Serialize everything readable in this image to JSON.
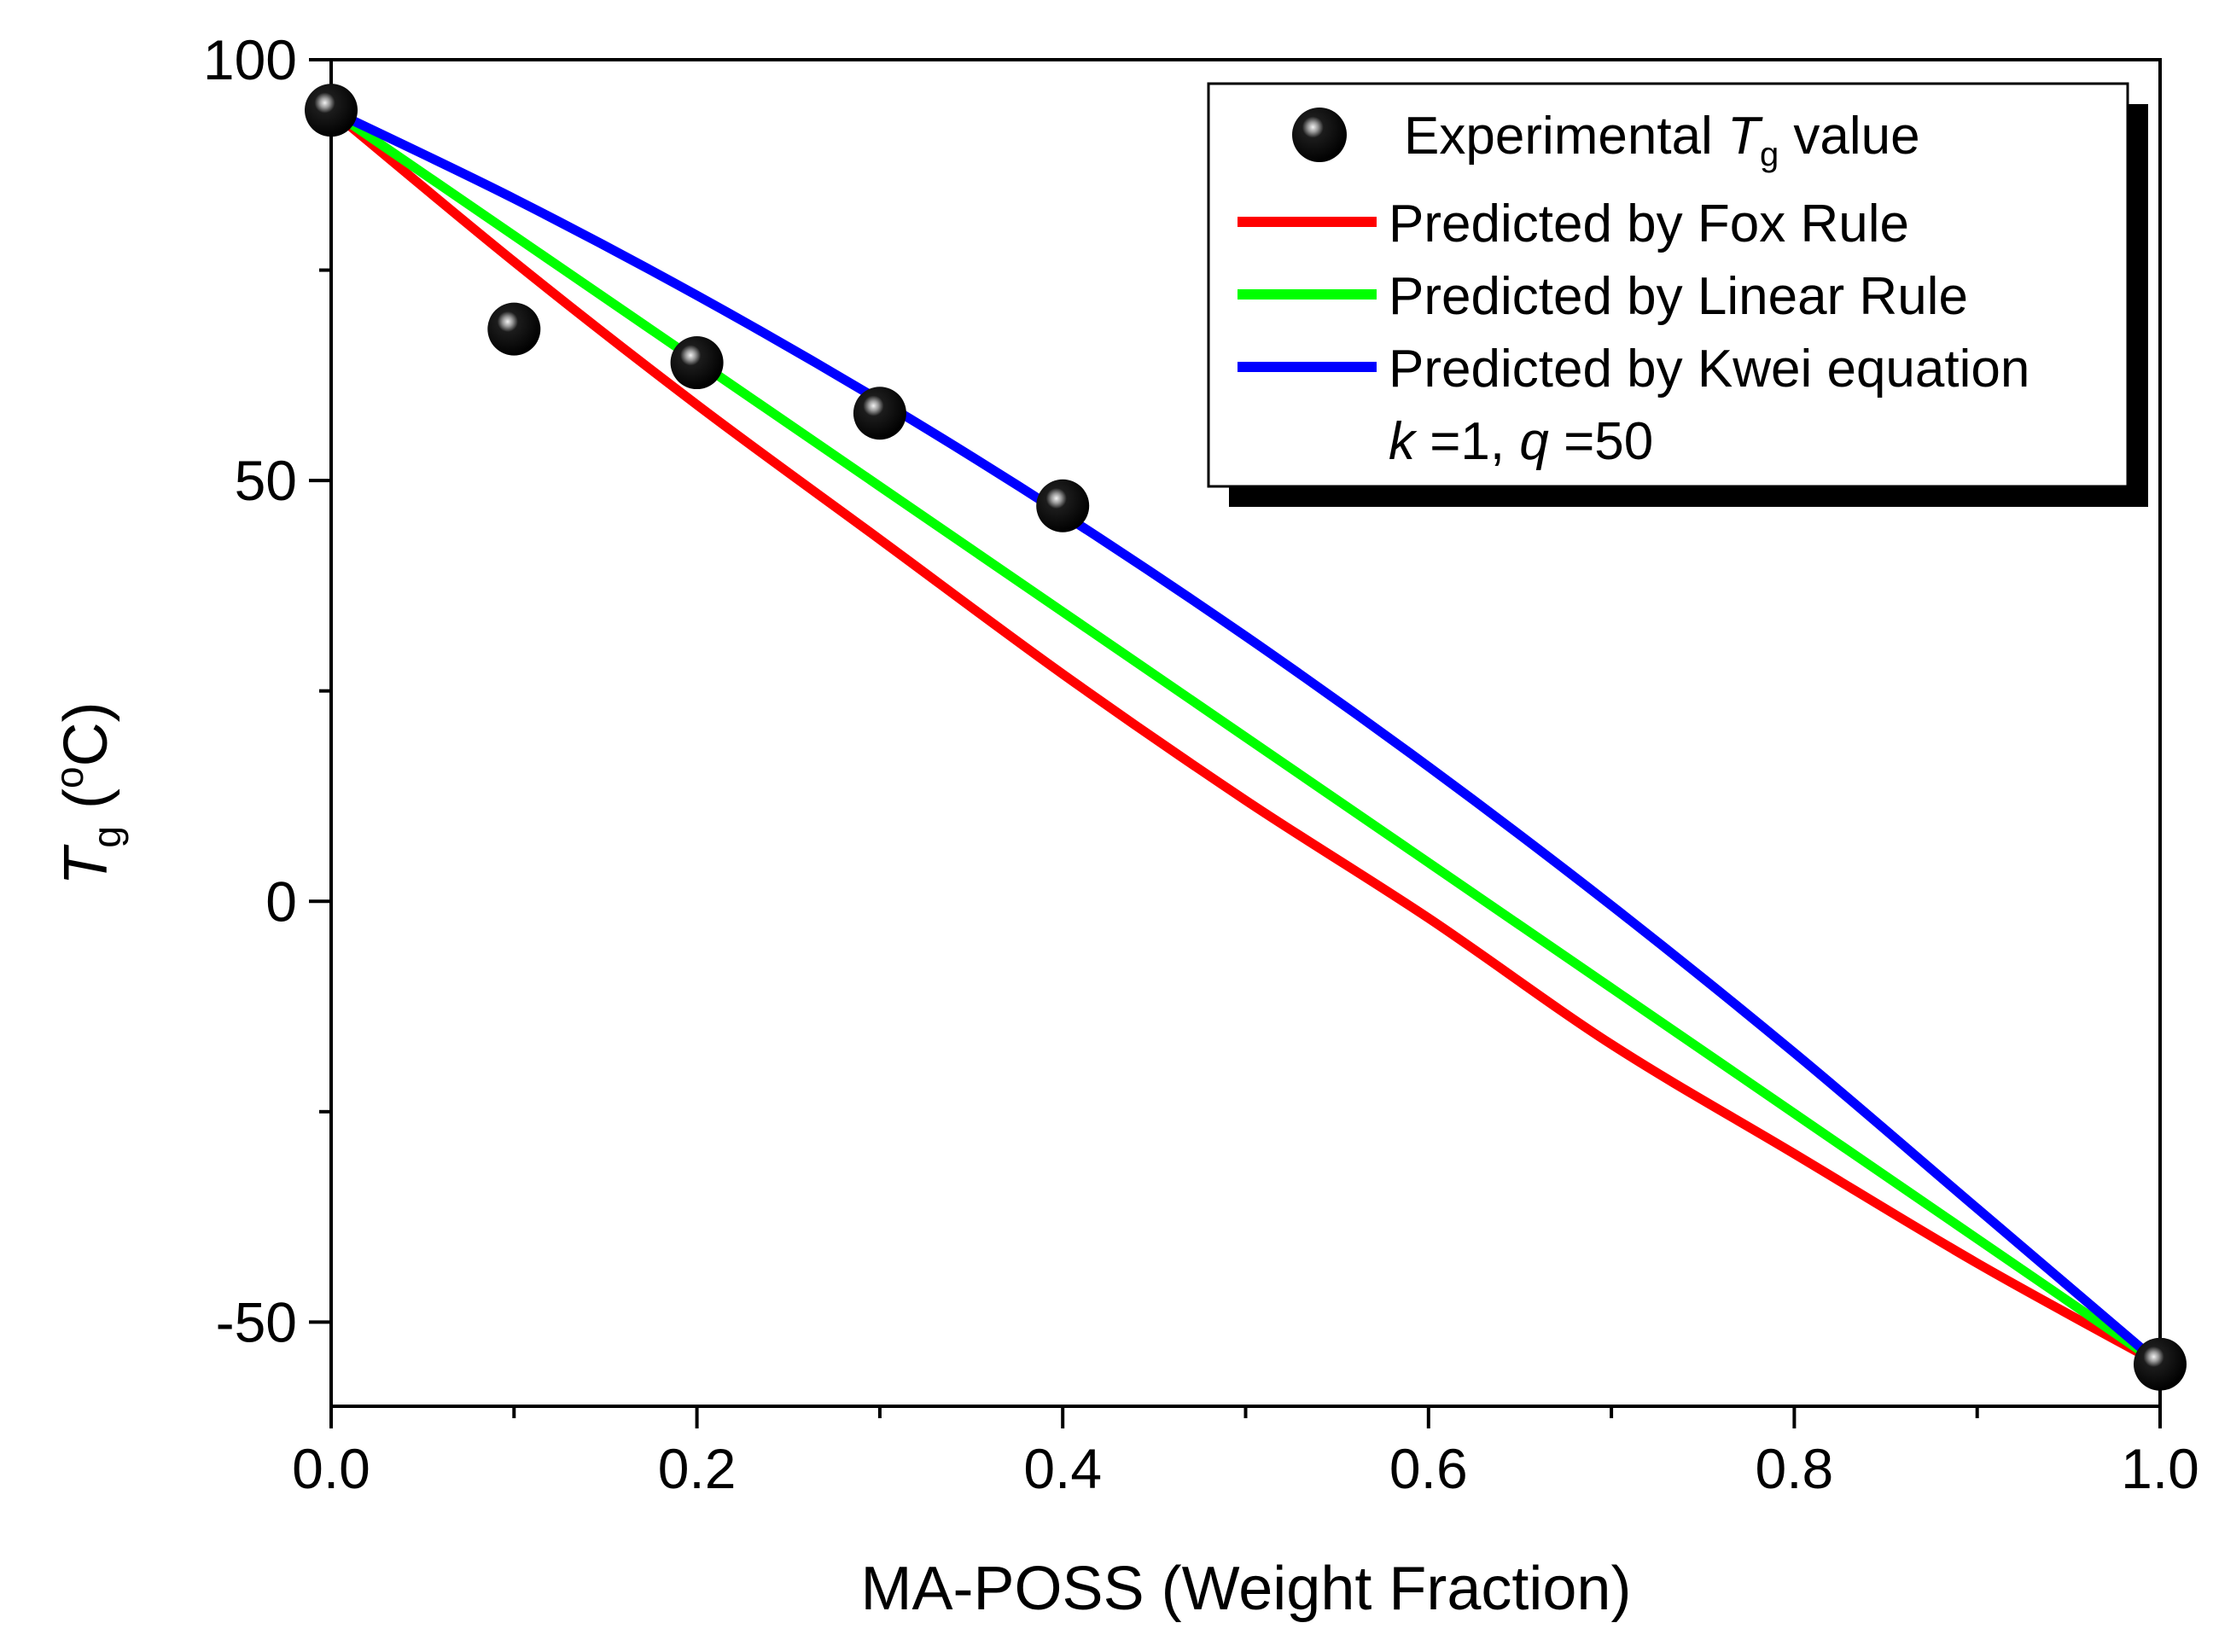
{
  "chart_data": {
    "type": "line",
    "title": "",
    "xlabel": "MA-POSS (Weight Fraction)",
    "ylabel": {
      "symbol": "T",
      "subscript": "g",
      "unit_open": " (",
      "unit_sup": "o",
      "unit_rest": "C)"
    },
    "xlim": [
      0.0,
      1.0
    ],
    "ylim": [
      -60,
      100
    ],
    "x_ticks": [
      0.0,
      0.2,
      0.4,
      0.6,
      0.8,
      1.0
    ],
    "x_tick_labels": [
      "0.0",
      "0.2",
      "0.4",
      "0.6",
      "0.8",
      "1.0"
    ],
    "x_minor_ticks": [
      0.1,
      0.3,
      0.5,
      0.7,
      0.9
    ],
    "y_ticks": [
      -50,
      0,
      50,
      100
    ],
    "y_tick_labels": [
      "-50",
      "0",
      "50",
      "100"
    ],
    "y_minor_ticks": [
      -25,
      25,
      75
    ],
    "grid": false,
    "legend_position": "top-right",
    "scatter": {
      "name": "Experimental Tg value",
      "x": [
        0.0,
        0.1,
        0.2,
        0.3,
        0.4,
        1.0
      ],
      "y": [
        94,
        68,
        64,
        58,
        47,
        -55
      ]
    },
    "series": [
      {
        "name": "Predicted by Fox Rule",
        "color": "#ff0000",
        "x": [
          0.0,
          0.1,
          0.2,
          0.3,
          0.4,
          0.5,
          0.6,
          0.7,
          0.8,
          0.9,
          1.0
        ],
        "y": [
          94,
          76,
          59,
          43,
          27,
          12,
          -2,
          -17,
          -30,
          -43,
          -55
        ]
      },
      {
        "name": "Predicted by Linear Rule",
        "color": "#00ff00",
        "x": [
          0.0,
          0.1,
          0.2,
          0.3,
          0.4,
          0.5,
          0.6,
          0.7,
          0.8,
          0.9,
          1.0
        ],
        "y": [
          94,
          79.1,
          64.2,
          49.3,
          34.4,
          19.5,
          4.6,
          -10.3,
          -25.2,
          -40.1,
          -55
        ]
      },
      {
        "name": "Predicted by Kwei equation",
        "color": "#0000ff",
        "x": [
          0.0,
          0.1,
          0.2,
          0.3,
          0.4,
          0.5,
          0.6,
          0.7,
          0.8,
          0.9,
          1.0
        ],
        "y": [
          94,
          83.5,
          72,
          59.5,
          46,
          31.5,
          16,
          -0.5,
          -18,
          -36.5,
          -55
        ]
      }
    ],
    "legend": {
      "marker_label_prefix": "Experimental ",
      "marker_label_symbol": "T",
      "marker_label_sub": "g",
      "marker_label_suffix": " value",
      "fox_label": "Predicted by Fox Rule",
      "linear_label": "Predicted by Linear Rule",
      "kwei_label": "Predicted by Kwei equation",
      "kwei_params": {
        "k_symbol": "k",
        "k_rest": " =1, ",
        "q_symbol": "q",
        "q_rest": " =50"
      }
    }
  }
}
